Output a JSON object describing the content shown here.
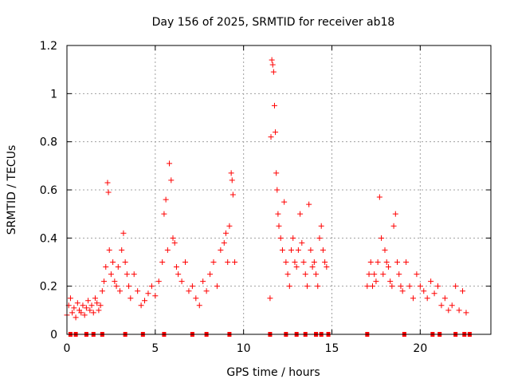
{
  "chart_data": {
    "type": "scatter",
    "title": "Day 156 of 2025, SRMTID for receiver ab18",
    "xlabel": "GPS time / hours",
    "ylabel": "SRMTID / TECUs",
    "xlim": [
      0,
      24
    ],
    "ylim": [
      0,
      1.2
    ],
    "xticks": [
      0,
      5,
      10,
      15,
      20
    ],
    "xtick_labels": [
      "0",
      "5",
      "10",
      "15",
      "20"
    ],
    "yticks": [
      0,
      0.2,
      0.4,
      0.6,
      0.8,
      1.0,
      1.2
    ],
    "ytick_labels": [
      "0",
      "0.2",
      "0.4",
      "0.6",
      "0.8",
      "1",
      "1.2"
    ],
    "grid": true,
    "marker": "plus",
    "series_color": "#ff0000",
    "x": [
      0.0,
      0.1,
      0.2,
      0.3,
      0.4,
      0.5,
      0.6,
      0.7,
      0.8,
      0.9,
      1.0,
      1.1,
      1.2,
      1.3,
      1.4,
      1.5,
      1.6,
      1.7,
      1.8,
      1.9,
      2.0,
      2.1,
      2.2,
      2.3,
      2.35,
      2.4,
      2.5,
      2.6,
      2.7,
      2.8,
      2.9,
      3.0,
      3.1,
      3.2,
      3.3,
      3.4,
      3.5,
      3.6,
      3.8,
      4.0,
      4.2,
      4.4,
      4.6,
      4.8,
      5.0,
      5.2,
      5.4,
      5.5,
      5.6,
      5.7,
      5.8,
      5.9,
      6.0,
      6.1,
      6.2,
      6.3,
      6.5,
      6.7,
      6.9,
      7.1,
      7.3,
      7.5,
      7.7,
      7.9,
      8.1,
      8.3,
      8.5,
      8.7,
      8.9,
      9.0,
      9.1,
      9.2,
      9.3,
      9.35,
      9.4,
      9.5,
      11.5,
      11.55,
      11.6,
      11.65,
      11.7,
      11.75,
      11.8,
      11.85,
      11.9,
      11.95,
      12.0,
      12.1,
      12.2,
      12.3,
      12.4,
      12.5,
      12.6,
      12.7,
      12.8,
      12.9,
      13.0,
      13.1,
      13.2,
      13.3,
      13.4,
      13.5,
      13.6,
      13.7,
      13.8,
      13.9,
      14.0,
      14.1,
      14.2,
      14.3,
      14.4,
      14.5,
      14.6,
      14.7,
      17.0,
      17.1,
      17.2,
      17.3,
      17.4,
      17.5,
      17.6,
      17.7,
      17.8,
      17.9,
      18.0,
      18.1,
      18.2,
      18.3,
      18.4,
      18.5,
      18.6,
      18.7,
      18.8,
      18.9,
      19.0,
      19.2,
      19.4,
      19.6,
      19.8,
      20.0,
      20.2,
      20.4,
      20.6,
      20.8,
      21.0,
      21.2,
      21.4,
      21.6,
      21.8,
      22.0,
      22.2,
      22.4,
      22.6
    ],
    "y": [
      0.08,
      0.12,
      0.15,
      0.09,
      0.11,
      0.07,
      0.13,
      0.1,
      0.09,
      0.12,
      0.08,
      0.11,
      0.14,
      0.1,
      0.12,
      0.09,
      0.15,
      0.13,
      0.1,
      0.12,
      0.18,
      0.22,
      0.28,
      0.63,
      0.59,
      0.35,
      0.25,
      0.3,
      0.22,
      0.2,
      0.28,
      0.18,
      0.35,
      0.42,
      0.3,
      0.25,
      0.2,
      0.15,
      0.25,
      0.18,
      0.12,
      0.14,
      0.17,
      0.2,
      0.16,
      0.22,
      0.3,
      0.5,
      0.56,
      0.35,
      0.71,
      0.64,
      0.4,
      0.38,
      0.28,
      0.25,
      0.22,
      0.3,
      0.18,
      0.2,
      0.15,
      0.12,
      0.22,
      0.18,
      0.25,
      0.3,
      0.2,
      0.35,
      0.38,
      0.42,
      0.3,
      0.45,
      0.67,
      0.64,
      0.58,
      0.3,
      0.15,
      0.82,
      1.14,
      1.12,
      1.09,
      0.95,
      0.84,
      0.67,
      0.6,
      0.5,
      0.45,
      0.4,
      0.35,
      0.55,
      0.3,
      0.25,
      0.2,
      0.35,
      0.4,
      0.3,
      0.28,
      0.35,
      0.5,
      0.38,
      0.3,
      0.25,
      0.2,
      0.54,
      0.35,
      0.28,
      0.3,
      0.25,
      0.2,
      0.4,
      0.45,
      0.35,
      0.3,
      0.28,
      0.2,
      0.25,
      0.3,
      0.2,
      0.25,
      0.22,
      0.3,
      0.57,
      0.4,
      0.25,
      0.35,
      0.3,
      0.28,
      0.22,
      0.2,
      0.45,
      0.5,
      0.3,
      0.25,
      0.2,
      0.18,
      0.3,
      0.2,
      0.15,
      0.25,
      0.2,
      0.18,
      0.15,
      0.22,
      0.17,
      0.2,
      0.12,
      0.15,
      0.1,
      0.12,
      0.2,
      0.1,
      0.18,
      0.09
    ],
    "zero_marks_x": [
      0.2,
      0.5,
      1.1,
      1.5,
      2.0,
      3.3,
      4.3,
      5.5,
      7.1,
      7.9,
      9.2,
      11.5,
      12.4,
      13.0,
      13.5,
      14.1,
      14.4,
      14.8,
      17.0,
      19.1,
      20.7,
      21.1,
      22.0,
      22.5,
      22.8
    ]
  }
}
